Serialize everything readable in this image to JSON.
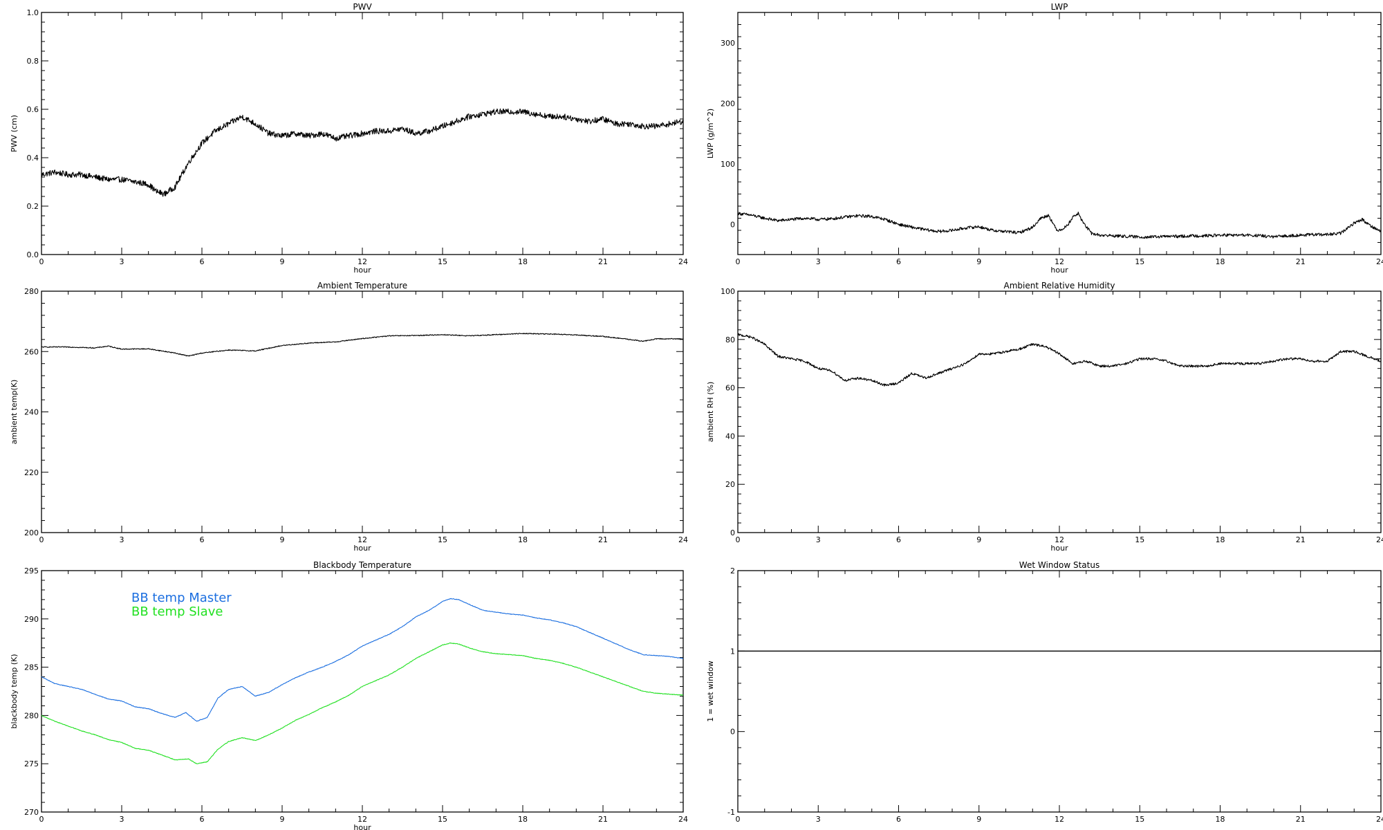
{
  "colors": {
    "axis": "#000000",
    "trace": "#000000",
    "bb_master": "#1c6fe0",
    "bb_slave": "#22e022"
  },
  "chart_data": [
    {
      "id": "pwv",
      "type": "line",
      "title": "PWV",
      "xlabel": "hour",
      "ylabel": "PWV (cm)",
      "xlim": [
        0,
        24
      ],
      "ylim": [
        0.0,
        1.0
      ],
      "xticks": [
        0,
        3,
        6,
        9,
        12,
        15,
        18,
        21,
        24
      ],
      "xtick_labels": [
        "0",
        "3",
        "6",
        "9",
        "12",
        "15",
        "18",
        "21",
        "24"
      ],
      "yticks": [
        0.0,
        0.2,
        0.4,
        0.6,
        0.8,
        1.0
      ],
      "ytick_labels": [
        "0.0",
        "0.2",
        "0.4",
        "0.6",
        "0.8",
        "1.0"
      ],
      "noise": 0.012,
      "series": [
        {
          "color_key": "trace",
          "x": [
            0,
            0.5,
            1,
            1.5,
            2,
            2.5,
            3,
            3.5,
            4,
            4.3,
            4.6,
            5,
            5.5,
            6,
            6.5,
            7,
            7.5,
            8,
            8.5,
            9,
            9.5,
            10,
            10.5,
            11,
            11.5,
            12,
            12.5,
            13,
            13.5,
            14,
            14.5,
            15,
            15.5,
            16,
            16.5,
            17,
            17.5,
            18,
            18.5,
            19,
            19.5,
            20,
            20.5,
            21,
            21.5,
            22,
            22.5,
            23,
            23.5,
            24
          ],
          "y": [
            0.33,
            0.34,
            0.33,
            0.33,
            0.32,
            0.31,
            0.31,
            0.3,
            0.29,
            0.26,
            0.25,
            0.28,
            0.38,
            0.46,
            0.51,
            0.54,
            0.57,
            0.54,
            0.5,
            0.49,
            0.5,
            0.49,
            0.5,
            0.48,
            0.49,
            0.5,
            0.51,
            0.51,
            0.52,
            0.5,
            0.51,
            0.53,
            0.55,
            0.57,
            0.58,
            0.59,
            0.59,
            0.59,
            0.58,
            0.57,
            0.57,
            0.56,
            0.55,
            0.56,
            0.54,
            0.54,
            0.53,
            0.53,
            0.54,
            0.55
          ]
        }
      ]
    },
    {
      "id": "lwp",
      "type": "line",
      "title": "LWP",
      "xlabel": "hour",
      "ylabel": "LWP (g/m^2)",
      "xlim": [
        0,
        24
      ],
      "ylim": [
        -50,
        350
      ],
      "xticks": [
        0,
        3,
        6,
        9,
        12,
        15,
        18,
        21,
        24
      ],
      "xtick_labels": [
        "0",
        "3",
        "6",
        "9",
        "12",
        "15",
        "18",
        "21",
        "24"
      ],
      "yticks": [
        0,
        100,
        200,
        300
      ],
      "ytick_labels": [
        "0",
        "100",
        "200",
        "300"
      ],
      "noise": 2.5,
      "series": [
        {
          "color_key": "trace",
          "x": [
            0,
            0.5,
            1,
            1.5,
            2,
            2.5,
            3,
            3.5,
            4,
            4.5,
            5,
            5.5,
            6,
            6.5,
            7,
            7.5,
            8,
            8.5,
            9,
            9.5,
            10,
            10.5,
            11,
            11.3,
            11.6,
            11.9,
            12.1,
            12.3,
            12.5,
            12.7,
            12.9,
            13.2,
            13.5,
            14,
            14.5,
            15,
            15.5,
            16,
            16.5,
            17,
            17.5,
            18,
            18.5,
            19,
            19.5,
            20,
            20.5,
            21,
            21.5,
            22,
            22.5,
            23,
            23.3,
            23.6,
            24
          ],
          "y": [
            18,
            15,
            10,
            6,
            8,
            10,
            8,
            9,
            12,
            14,
            13,
            8,
            0,
            -5,
            -9,
            -12,
            -10,
            -6,
            -4,
            -10,
            -12,
            -14,
            -5,
            10,
            15,
            -10,
            -8,
            -2,
            12,
            18,
            2,
            -15,
            -18,
            -19,
            -20,
            -21,
            -21,
            -20,
            -20,
            -19,
            -19,
            -18,
            -18,
            -18,
            -19,
            -21,
            -19,
            -18,
            -17,
            -17,
            -15,
            2,
            8,
            -2,
            -12
          ]
        }
      ]
    },
    {
      "id": "ambient-temp",
      "type": "line",
      "title": "Ambient Temperature",
      "xlabel": "hour",
      "ylabel": "ambient temp(K)",
      "xlim": [
        0,
        24
      ],
      "ylim": [
        200,
        280
      ],
      "xticks": [
        0,
        3,
        6,
        9,
        12,
        15,
        18,
        21,
        24
      ],
      "xtick_labels": [
        "0",
        "3",
        "6",
        "9",
        "12",
        "15",
        "18",
        "21",
        "24"
      ],
      "yticks": [
        200,
        220,
        240,
        260,
        280
      ],
      "ytick_labels": [
        "200",
        "220",
        "240",
        "260",
        "280"
      ],
      "noise": 0.15,
      "series": [
        {
          "color_key": "trace",
          "x": [
            0,
            1,
            2,
            2.5,
            3,
            4,
            5,
            5.5,
            6,
            7,
            8,
            9,
            10,
            11,
            12,
            13,
            14,
            15,
            16,
            17,
            18,
            19,
            20,
            21,
            22,
            22.5,
            23,
            24
          ],
          "y": [
            261.5,
            261.5,
            261.2,
            261.8,
            260.8,
            260.9,
            259.5,
            258.5,
            259.5,
            260.5,
            260.2,
            262.0,
            262.8,
            263.2,
            264.3,
            265.2,
            265.3,
            265.6,
            265.2,
            265.6,
            266.0,
            265.8,
            265.5,
            265.0,
            264.0,
            263.4,
            264.2,
            264.2
          ]
        }
      ]
    },
    {
      "id": "ambient-rh",
      "type": "line",
      "title": "Ambient Relative Humidity",
      "xlabel": "hour",
      "ylabel": "ambient RH (%)",
      "xlim": [
        0,
        24
      ],
      "ylim": [
        0,
        100
      ],
      "xticks": [
        0,
        3,
        6,
        9,
        12,
        15,
        18,
        21,
        24
      ],
      "xtick_labels": [
        "0",
        "3",
        "6",
        "9",
        "12",
        "15",
        "18",
        "21",
        "24"
      ],
      "yticks": [
        0,
        20,
        40,
        60,
        80,
        100
      ],
      "ytick_labels": [
        "0",
        "20",
        "40",
        "60",
        "80",
        "100"
      ],
      "noise": 0.5,
      "series": [
        {
          "color_key": "trace",
          "x": [
            0,
            0.5,
            1,
            1.5,
            2,
            2.5,
            3,
            3.5,
            4,
            4.5,
            5,
            5.5,
            6,
            6.5,
            7,
            7.5,
            8,
            8.5,
            9,
            9.5,
            10,
            10.5,
            11,
            11.5,
            12,
            12.5,
            13,
            13.5,
            14,
            14.5,
            15,
            15.5,
            16,
            16.5,
            17,
            17.5,
            18,
            18.5,
            19,
            19.5,
            20,
            20.5,
            21,
            21.5,
            22,
            22.5,
            23,
            23.5,
            24
          ],
          "y": [
            82,
            81,
            78,
            73,
            72,
            71,
            68,
            67,
            63,
            64,
            63,
            61,
            62,
            66,
            64,
            66,
            68,
            70,
            74,
            74,
            75,
            76,
            78,
            77,
            74,
            70,
            71,
            69,
            69,
            70,
            72,
            72,
            71,
            69,
            69,
            69,
            70,
            70,
            70,
            70,
            71,
            72,
            72,
            71,
            71,
            75,
            75,
            73,
            71
          ]
        }
      ]
    },
    {
      "id": "bb-temp",
      "type": "line",
      "title": "Blackbody Temperature",
      "xlabel": "hour",
      "ylabel": "blackbody temp (K)",
      "xlim": [
        0,
        24
      ],
      "ylim": [
        270,
        295
      ],
      "xticks": [
        0,
        3,
        6,
        9,
        12,
        15,
        18,
        21,
        24
      ],
      "xtick_labels": [
        "0",
        "3",
        "6",
        "9",
        "12",
        "15",
        "18",
        "21",
        "24"
      ],
      "yticks": [
        270,
        275,
        280,
        285,
        290,
        295
      ],
      "ytick_labels": [
        "270",
        "275",
        "280",
        "285",
        "290",
        "295"
      ],
      "noise": 0.03,
      "legend": [
        "BB temp Master",
        "BB temp Slave"
      ],
      "series": [
        {
          "name": "BB temp Master",
          "color_key": "bb_master",
          "x": [
            0,
            0.5,
            1,
            1.5,
            2,
            2.5,
            3,
            3.5,
            4,
            4.5,
            5,
            5.4,
            5.8,
            6.2,
            6.6,
            7,
            7.5,
            8,
            8.5,
            9,
            9.5,
            10,
            10.5,
            11,
            11.5,
            12,
            12.5,
            13,
            13.5,
            14,
            14.5,
            15,
            15.3,
            15.6,
            16,
            16.5,
            17,
            17.5,
            18,
            18.5,
            19,
            19.5,
            20,
            20.5,
            21,
            21.5,
            22,
            22.5,
            23,
            23.5,
            24
          ],
          "y": [
            284.0,
            283.3,
            283.0,
            282.7,
            282.2,
            281.7,
            281.5,
            280.9,
            280.7,
            280.2,
            279.8,
            280.3,
            279.4,
            279.8,
            281.8,
            282.7,
            283.0,
            282.0,
            282.4,
            283.2,
            283.9,
            284.5,
            285.0,
            285.6,
            286.3,
            287.2,
            287.8,
            288.4,
            289.2,
            290.2,
            290.9,
            291.8,
            292.1,
            292.0,
            291.5,
            290.9,
            290.7,
            290.5,
            290.4,
            290.1,
            289.9,
            289.6,
            289.2,
            288.6,
            288.0,
            287.4,
            286.8,
            286.3,
            286.2,
            286.1,
            285.9
          ]
        },
        {
          "name": "BB temp Slave",
          "color_key": "bb_slave",
          "x": [
            0,
            0.5,
            1,
            1.5,
            2,
            2.5,
            3,
            3.5,
            4,
            4.5,
            5,
            5.5,
            5.8,
            6.2,
            6.6,
            7,
            7.5,
            8,
            8.5,
            9,
            9.5,
            10,
            10.5,
            11,
            11.5,
            12,
            12.5,
            13,
            13.5,
            14,
            14.5,
            15,
            15.3,
            15.6,
            16,
            16.5,
            17,
            17.5,
            18,
            18.5,
            19,
            19.5,
            20,
            20.5,
            21,
            21.5,
            22,
            22.5,
            23,
            23.5,
            24
          ],
          "y": [
            280.0,
            279.4,
            278.9,
            278.4,
            278.0,
            277.5,
            277.2,
            276.6,
            276.4,
            275.9,
            275.4,
            275.5,
            275.0,
            275.2,
            276.5,
            277.3,
            277.7,
            277.4,
            278.0,
            278.7,
            279.5,
            280.1,
            280.8,
            281.4,
            282.1,
            283.0,
            283.6,
            284.2,
            285.0,
            285.9,
            286.6,
            287.3,
            287.5,
            287.4,
            287.0,
            286.6,
            286.4,
            286.3,
            286.2,
            285.9,
            285.7,
            285.4,
            285.0,
            284.5,
            284.0,
            283.5,
            283.0,
            282.5,
            282.3,
            282.2,
            282.1
          ]
        }
      ]
    },
    {
      "id": "wet-window",
      "type": "line",
      "title": "Wet Window Status",
      "xlabel": "",
      "ylabel": "1 = wet window",
      "xlim": [
        0,
        24
      ],
      "ylim": [
        -1,
        2
      ],
      "xticks": [
        0,
        3,
        6,
        9,
        12,
        15,
        18,
        21,
        24
      ],
      "xtick_labels": [
        "0",
        "3",
        "6",
        "9",
        "12",
        "15",
        "18",
        "21",
        "24"
      ],
      "yticks": [
        -1,
        0,
        1,
        2
      ],
      "ytick_labels": [
        "-1",
        "0",
        "1",
        "2"
      ],
      "noise": 0,
      "series": [
        {
          "color_key": "trace",
          "x": [
            0,
            24
          ],
          "y": [
            1,
            1
          ]
        }
      ]
    }
  ]
}
